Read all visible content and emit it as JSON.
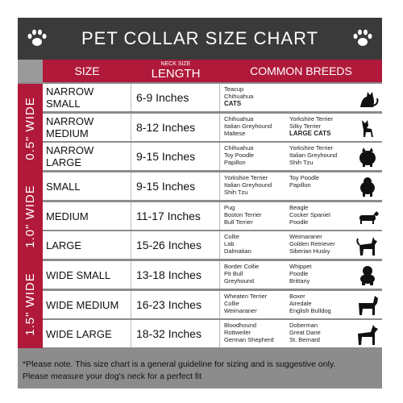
{
  "title": "PET COLLAR SIZE CHART",
  "header": {
    "size": "SIZE",
    "neck_size": "NECK SIZE",
    "length": "LENGTH",
    "breeds": "COMMON BREEDS"
  },
  "bands": [
    "0.5\" WIDE",
    "1.0\" WIDE",
    "1.5\" WIDE"
  ],
  "rows": [
    {
      "size": "NARROW SMALL",
      "length": "6-9   Inches",
      "col1": [
        "Teacup",
        "Chihuahua",
        "CATS"
      ],
      "col2": [],
      "bold1": 2,
      "bold2": -1,
      "icon": "cat-silhouette-icon"
    },
    {
      "size": "NARROW MEDIUM",
      "length": "8-12 Inches",
      "col1": [
        "Chihuahua",
        "Italian Greyhound",
        "Maltese"
      ],
      "col2": [
        "Yorkshire Terrier",
        "Silky Terrier",
        "LARGE CATS"
      ],
      "bold1": -1,
      "bold2": 2,
      "icon": "chihuahua-silhouette-icon"
    },
    {
      "size": "NARROW LARGE",
      "length": "9-15 Inches",
      "col1": [
        "Chihuahua",
        "Toy Poodle",
        "Papillon"
      ],
      "col2": [
        "Yorkshire Terrier",
        "Italian Greyhound",
        "Shih Tzu"
      ],
      "bold1": -1,
      "bold2": -1,
      "icon": "pomeranian-silhouette-icon"
    },
    {
      "size": "SMALL",
      "length": "9-15   Inches",
      "col1": [
        "Yorkshire Terrier",
        "Italian Greyhound",
        "Shih Tzu"
      ],
      "col2": [
        "Toy Poodle",
        "Papillon"
      ],
      "bold1": -1,
      "bold2": -1,
      "icon": "small-dog-silhouette-icon"
    },
    {
      "size": "MEDIUM",
      "length": "11-17 Inches",
      "col1": [
        "Pug",
        "Boston Terrier",
        "Bull Terrier"
      ],
      "col2": [
        "Beagle",
        "Cocker Spaniel",
        "Poodle"
      ],
      "bold1": -1,
      "bold2": -1,
      "icon": "dachshund-silhouette-icon"
    },
    {
      "size": "LARGE",
      "length": "15-26 Inches",
      "col1": [
        "Collie",
        "Lab",
        "Dalmatian"
      ],
      "col2": [
        "Weimaraner",
        "Golden Retriever",
        "Siberian Husky"
      ],
      "bold1": -1,
      "bold2": -1,
      "icon": "husky-silhouette-icon"
    },
    {
      "size": "WIDE SMALL",
      "length": "13-18 Inches",
      "col1": [
        "Border Collie",
        "Pit Bull",
        "Greyhound"
      ],
      "col2": [
        "Whippet",
        "Poodle",
        "Brittany"
      ],
      "bold1": -1,
      "bold2": -1,
      "icon": "bulldog-silhouette-icon"
    },
    {
      "size": "WIDE MEDIUM",
      "length": "16-23 Inches",
      "col1": [
        "Wheaten Terrier",
        "Collie",
        "Weimaraner"
      ],
      "col2": [
        "Boxer",
        "Airedale",
        "English Bulldog"
      ],
      "bold1": -1,
      "bold2": -1,
      "icon": "boxer-silhouette-icon"
    },
    {
      "size": "WIDE LARGE",
      "length": "18-32 Inches",
      "col1": [
        "Bloodhound",
        "Rottweiler",
        "German Shepherd"
      ],
      "col2": [
        "Doberman",
        "Great Dane",
        "St. Bernard"
      ],
      "bold1": -1,
      "bold2": -1,
      "icon": "doberman-silhouette-icon"
    }
  ],
  "footer": {
    "line1": "*Please note. This size chart is a general guideline for sizing and is suggestive only.",
    "line2": "Please measure your dog's neck for a perfect fit"
  },
  "icons": {
    "title_left": "paw-print-icon",
    "title_right": "paw-print-icon"
  },
  "colors": {
    "accent": "#b0193a",
    "title_bg": "#3a3a3a",
    "frame": "#8c8c8c"
  }
}
